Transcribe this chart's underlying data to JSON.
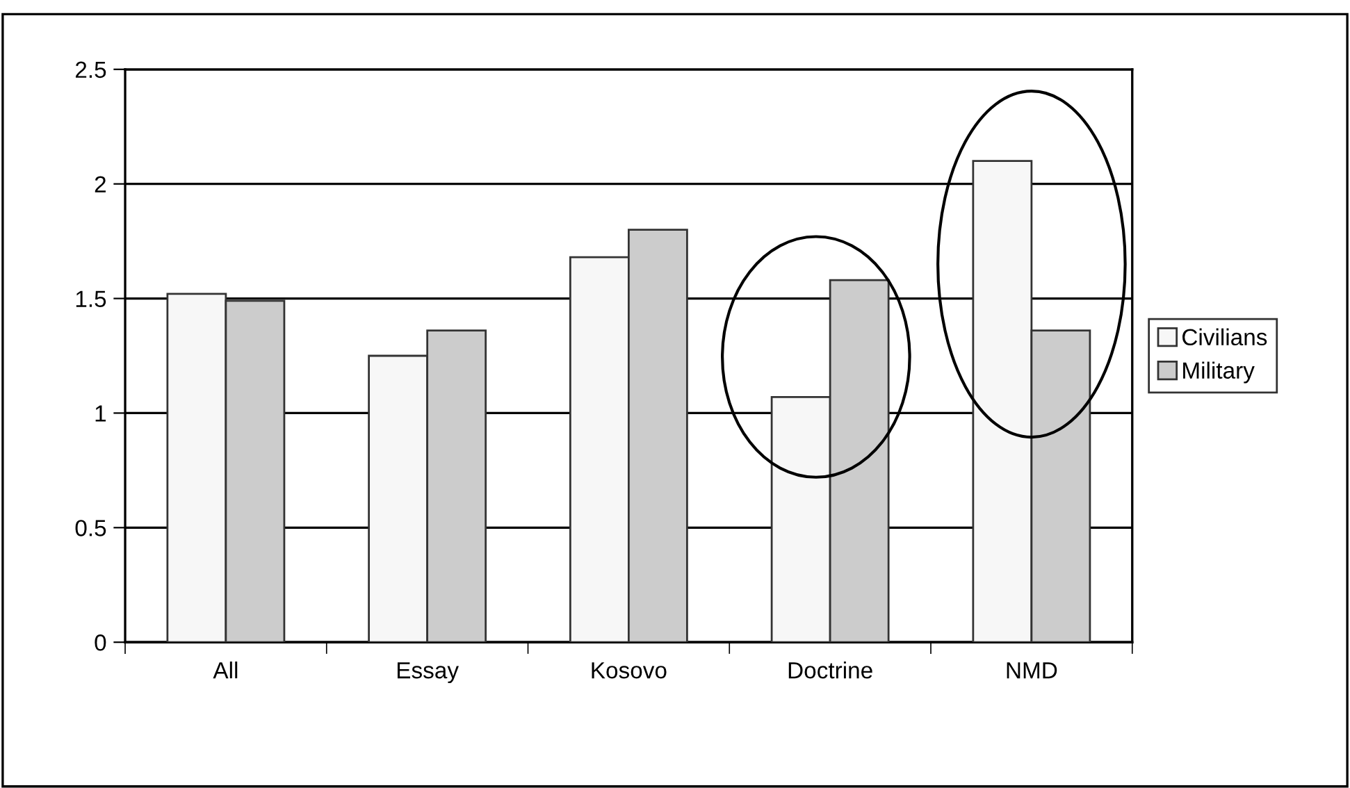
{
  "chart_data": {
    "type": "bar",
    "categories": [
      "All",
      "Essay",
      "Kosovo",
      "Doctrine",
      "NMD"
    ],
    "series": [
      {
        "name": "Civilians",
        "color": "#f7f7f7",
        "values": [
          1.52,
          1.25,
          1.68,
          1.07,
          2.1
        ]
      },
      {
        "name": "Military",
        "color": "#cccccc",
        "values": [
          1.49,
          1.36,
          1.8,
          1.58,
          1.36
        ]
      }
    ],
    "ylim": [
      0,
      2.5
    ],
    "yticks": [
      0,
      0.5,
      1,
      1.5,
      2,
      2.5
    ],
    "grid": "y",
    "legend": "right"
  }
}
